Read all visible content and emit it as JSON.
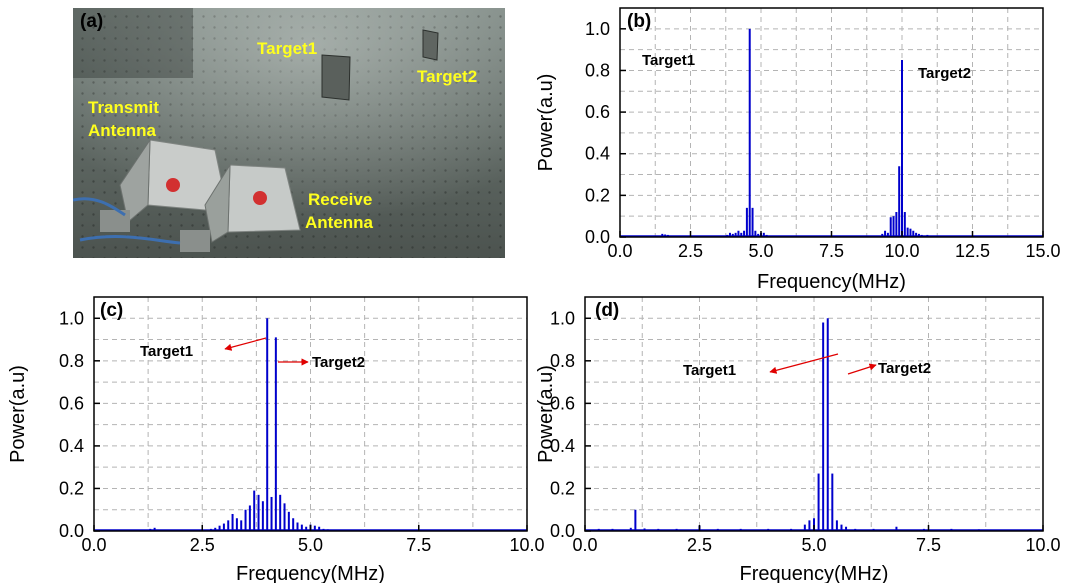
{
  "photo": {
    "panel_label": "(a)",
    "labels": {
      "target1": "Target1",
      "target2": "Target2",
      "transmit_line1": "Transmit",
      "transmit_line2": "Antenna",
      "receive_line1": "Receive",
      "receive_line2": "Antenna"
    },
    "label_color": "#ffff1e"
  },
  "colors": {
    "series": "#0000cc",
    "arrow": "#e00000",
    "grid": "#b4b4b4"
  },
  "chart_data": [
    {
      "id": "b",
      "panel_label": "(b)",
      "type": "bar",
      "xlabel": "Frequency(MHz)",
      "ylabel": "Power(a.u)",
      "xlim": [
        0,
        15
      ],
      "ylim": [
        0,
        1.1
      ],
      "xticks": [
        "0.0",
        "2.5",
        "5.0",
        "7.5",
        "10.0",
        "12.5",
        "15.0"
      ],
      "yticks": [
        "0.0",
        "0.2",
        "0.4",
        "0.6",
        "0.8",
        "1.0"
      ],
      "grid": true,
      "series": [
        {
          "x": [
            1.5,
            1.6,
            1.7,
            3.8,
            3.9,
            4.0,
            4.1,
            4.2,
            4.3,
            4.4,
            4.5,
            4.6,
            4.7,
            4.8,
            4.9,
            5.0,
            5.1,
            5.2,
            9.3,
            9.4,
            9.5,
            9.6,
            9.7,
            9.8,
            9.9,
            10.0,
            10.1,
            10.2,
            10.3,
            10.4,
            10.5,
            10.6,
            10.7,
            10.9
          ],
          "values": [
            0.015,
            0.012,
            0.01,
            0.01,
            0.02,
            0.015,
            0.02,
            0.03,
            0.02,
            0.03,
            0.14,
            1.0,
            0.14,
            0.03,
            0.015,
            0.02,
            0.02,
            0.01,
            0.015,
            0.03,
            0.02,
            0.095,
            0.1,
            0.12,
            0.34,
            0.85,
            0.12,
            0.045,
            0.04,
            0.03,
            0.02,
            0.015,
            0.01,
            0.01
          ]
        }
      ],
      "annotations": [
        {
          "text": "Target1"
        },
        {
          "text": "Target2"
        }
      ]
    },
    {
      "id": "c",
      "panel_label": "(c)",
      "type": "bar",
      "xlabel": "Frequency(MHz)",
      "ylabel": "Power(a.u)",
      "xlim": [
        0,
        10
      ],
      "ylim": [
        0,
        1.1
      ],
      "xticks": [
        "0.0",
        "2.5",
        "5.0",
        "7.5",
        "10.0"
      ],
      "yticks": [
        "0.0",
        "0.2",
        "0.4",
        "0.6",
        "0.8",
        "1.0"
      ],
      "grid": true,
      "series": [
        {
          "x": [
            1.3,
            1.4,
            2.6,
            2.7,
            2.8,
            2.9,
            3.0,
            3.1,
            3.2,
            3.3,
            3.4,
            3.5,
            3.6,
            3.7,
            3.8,
            3.9,
            4.0,
            4.1,
            4.2,
            4.3,
            4.4,
            4.5,
            4.6,
            4.7,
            4.8,
            4.9,
            5.0,
            5.1,
            5.2,
            5.3,
            5.4,
            5.5
          ],
          "values": [
            0.01,
            0.015,
            0.005,
            0.01,
            0.015,
            0.025,
            0.035,
            0.05,
            0.08,
            0.06,
            0.05,
            0.1,
            0.12,
            0.19,
            0.17,
            0.14,
            1.0,
            0.16,
            0.91,
            0.17,
            0.13,
            0.09,
            0.06,
            0.04,
            0.03,
            0.02,
            0.03,
            0.025,
            0.02,
            0.01,
            0.008,
            0.005
          ]
        }
      ],
      "annotations": [
        {
          "text": "Target1"
        },
        {
          "text": "Target2"
        }
      ]
    },
    {
      "id": "d",
      "panel_label": "(d)",
      "type": "bar",
      "xlabel": "Frequency(MHz)",
      "ylabel": "Power(a.u)",
      "xlim": [
        0,
        10
      ],
      "ylim": [
        0,
        1.1
      ],
      "xticks": [
        "0.0",
        "2.5",
        "5.0",
        "7.5",
        "10.0"
      ],
      "yticks": [
        "0.0",
        "0.2",
        "0.4",
        "0.6",
        "0.8",
        "1.0"
      ],
      "grid": true,
      "series": [
        {
          "x": [
            0.3,
            0.6,
            1.0,
            1.1,
            1.3,
            1.6,
            2.0,
            2.5,
            2.9,
            3.4,
            4.0,
            4.5,
            4.8,
            4.9,
            5.0,
            5.1,
            5.2,
            5.3,
            5.4,
            5.5,
            5.6,
            5.7,
            5.9,
            6.3,
            6.8,
            7.4,
            8.0,
            8.6
          ],
          "values": [
            0.01,
            0.01,
            0.015,
            0.1,
            0.012,
            0.01,
            0.01,
            0.025,
            0.01,
            0.01,
            0.01,
            0.01,
            0.03,
            0.05,
            0.06,
            0.27,
            0.98,
            1.0,
            0.27,
            0.05,
            0.03,
            0.02,
            0.01,
            0.01,
            0.02,
            0.01,
            0.01,
            0.008
          ]
        }
      ],
      "annotations": [
        {
          "text": "Target1"
        },
        {
          "text": "Target2"
        }
      ]
    }
  ]
}
